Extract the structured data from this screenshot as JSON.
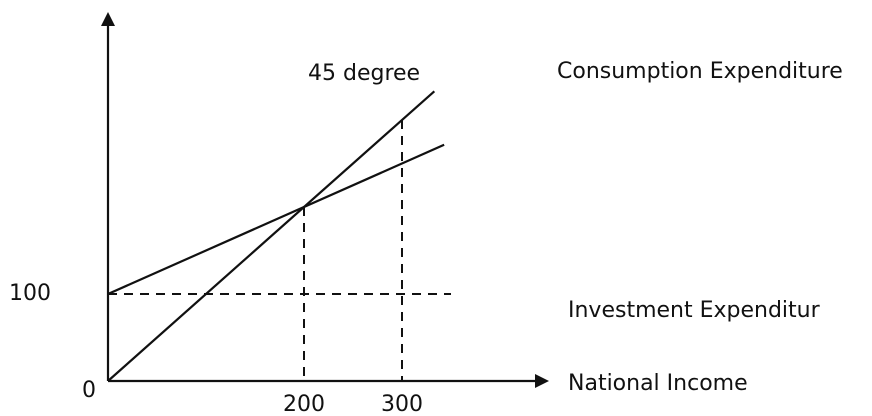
{
  "chart_data": {
    "type": "line",
    "title": "",
    "xlabel": "National Income",
    "ylabel": "",
    "origin_label": "0",
    "x_ticks": [
      200,
      300
    ],
    "y_ticks": [
      100
    ],
    "xlim": [
      0,
      350
    ],
    "ylim": [
      0,
      500
    ],
    "series": [
      {
        "name": "45 degree",
        "x": [
          0,
          333
        ],
        "y": [
          0,
          333
        ]
      },
      {
        "name": "Consumption Expenditure",
        "x": [
          0,
          343
        ],
        "y": [
          100,
          271.5
        ]
      },
      {
        "name": "Investment Expenditur",
        "x": [
          0,
          350
        ],
        "y": [
          100,
          100
        ]
      }
    ],
    "reference_lines": [
      {
        "x": 200,
        "y": 200
      },
      {
        "x": 300,
        "y": 300
      }
    ],
    "grid": false,
    "legend": "none"
  }
}
